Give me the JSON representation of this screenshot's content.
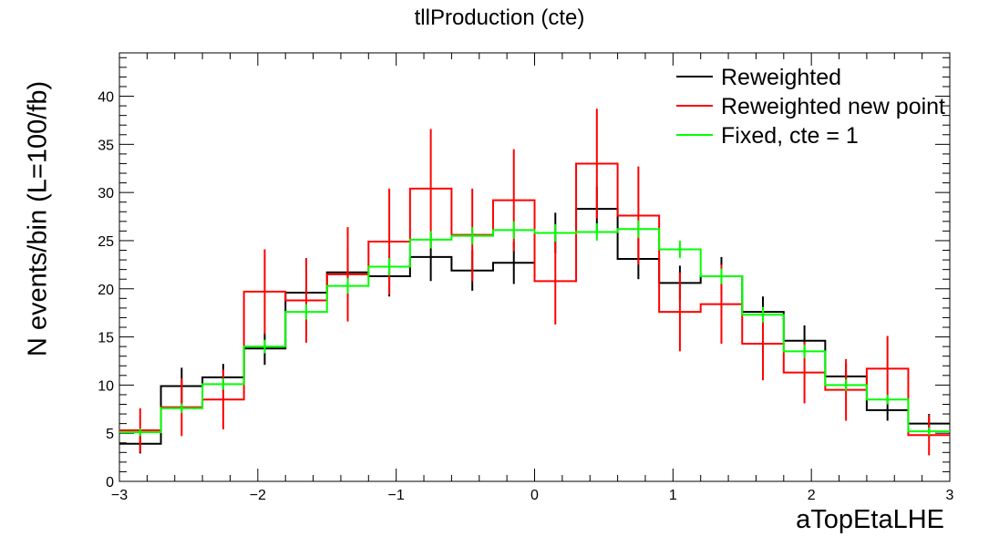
{
  "chart_data": {
    "type": "line",
    "title": "tllProduction (cte)",
    "xlabel": "aTopEtaLHE",
    "ylabel": "N events/bin (L=100/fb)",
    "xlim": [
      -3,
      3
    ],
    "ylim": [
      0,
      44.5
    ],
    "xticks": [
      "−3",
      "−2",
      "−1",
      "0",
      "1",
      "2",
      "3"
    ],
    "yticks": [
      "0",
      "5",
      "10",
      "15",
      "20",
      "25",
      "30",
      "35",
      "40"
    ],
    "bin_edges": [
      -3,
      -2.7,
      -2.4,
      -2.1,
      -1.8,
      -1.5,
      -1.2,
      -0.9,
      -0.6,
      -0.3,
      0,
      0.3,
      0.6,
      0.9,
      1.2,
      1.5,
      1.8,
      2.1,
      2.4,
      2.7,
      3
    ],
    "legend_position": "top-right",
    "series": [
      {
        "name": "Reweighted",
        "color": "#000000",
        "values": [
          3.9,
          9.9,
          10.8,
          13.8,
          19.6,
          21.7,
          21.3,
          23.3,
          21.9,
          22.7,
          25.8,
          28.3,
          23.1,
          20.6,
          21.3,
          17.6,
          14.6,
          10.9,
          7.4,
          6.0
        ],
        "errors": [
          1.0,
          1.9,
          1.4,
          1.7,
          2.3,
          2.5,
          2.1,
          2.5,
          2.1,
          2.2,
          2.1,
          2.3,
          2.1,
          1.8,
          2.0,
          1.6,
          1.6,
          1.3,
          1.1,
          1.0
        ]
      },
      {
        "name": "Reweighted new point",
        "color": "#ff0000",
        "values": [
          5.3,
          7.7,
          8.5,
          19.7,
          18.8,
          21.5,
          24.9,
          30.4,
          25.6,
          29.2,
          20.8,
          33.0,
          27.6,
          17.6,
          18.4,
          14.3,
          11.3,
          9.5,
          11.7,
          4.8
        ],
        "errors": [
          2.3,
          3.0,
          3.1,
          4.4,
          4.4,
          4.9,
          5.5,
          6.2,
          4.8,
          5.3,
          4.5,
          5.7,
          5.1,
          4.1,
          4.1,
          3.8,
          3.2,
          3.2,
          3.4,
          2.1
        ]
      },
      {
        "name": "Fixed, cte = 1",
        "color": "#00ff00",
        "values": [
          5.1,
          7.6,
          10.1,
          14.0,
          17.6,
          20.3,
          22.3,
          25.1,
          25.5,
          26.1,
          25.8,
          25.9,
          26.2,
          24.1,
          21.3,
          17.3,
          13.5,
          10.0,
          8.5,
          5.2
        ],
        "errors": [
          0.4,
          0.5,
          0.6,
          0.7,
          0.8,
          0.8,
          0.9,
          0.9,
          0.9,
          0.9,
          0.9,
          0.9,
          0.9,
          0.9,
          0.8,
          0.8,
          0.7,
          0.6,
          0.5,
          0.4
        ]
      }
    ]
  }
}
